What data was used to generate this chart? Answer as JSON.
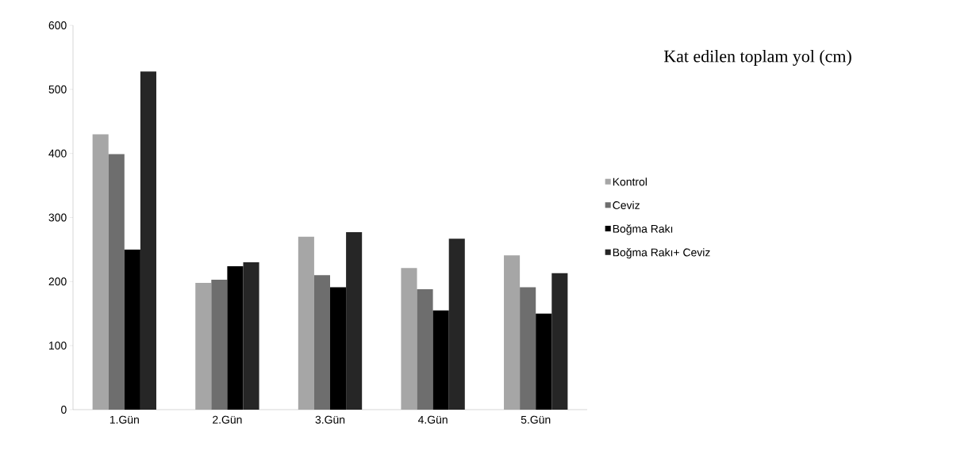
{
  "chart_data": {
    "type": "bar",
    "title": "Kat edilen toplam yol (cm)",
    "categories": [
      "1.Gün",
      "2.Gün",
      "3.Gün",
      "4.Gün",
      "5.Gün"
    ],
    "series": [
      {
        "name": "Kontrol",
        "color": "#a6a6a6",
        "values": [
          430,
          198,
          270,
          221,
          241
        ]
      },
      {
        "name": "Ceviz",
        "color": "#6e6e6e",
        "values": [
          399,
          203,
          210,
          188,
          191
        ]
      },
      {
        "name": "Boğma Rakı",
        "color": "#000000",
        "values": [
          250,
          224,
          191,
          155,
          150
        ]
      },
      {
        "name": "Boğma Rakı+ Ceviz",
        "color": "#262626",
        "values": [
          528,
          230,
          277,
          267,
          213
        ]
      }
    ],
    "ylim": [
      0,
      600
    ],
    "yticks": [
      0,
      100,
      200,
      300,
      400,
      500,
      600
    ],
    "grid": false,
    "legend": "right"
  }
}
